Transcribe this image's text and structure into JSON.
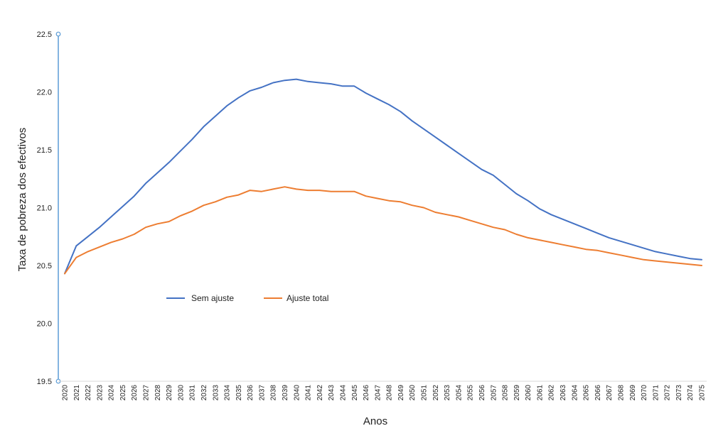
{
  "chart_data": {
    "type": "line",
    "title": "",
    "xlabel": "Anos",
    "ylabel": "Taxa de pobreza dos efectivos",
    "ylim": [
      19.5,
      22.5
    ],
    "yticks": [
      "19.5",
      "20.0",
      "20.5",
      "21.0",
      "21.5",
      "22.0",
      "22.5"
    ],
    "grid": false,
    "legend_position": "inside-left-lower",
    "x": [
      2020,
      2021,
      2022,
      2023,
      2024,
      2025,
      2026,
      2027,
      2028,
      2029,
      2030,
      2031,
      2032,
      2033,
      2034,
      2035,
      2036,
      2037,
      2038,
      2039,
      2040,
      2041,
      2042,
      2043,
      2044,
      2045,
      2046,
      2047,
      2048,
      2049,
      2050,
      2051,
      2052,
      2053,
      2054,
      2055,
      2056,
      2057,
      2058,
      2059,
      2060,
      2061,
      2062,
      2063,
      2064,
      2065,
      2066,
      2067,
      2068,
      2069,
      2070,
      2071,
      2072,
      2073,
      2074,
      2075
    ],
    "series": [
      {
        "name": "Sem ajuste",
        "color": "#4472C4",
        "values": [
          20.43,
          20.67,
          20.75,
          20.83,
          20.92,
          21.01,
          21.1,
          21.21,
          21.3,
          21.39,
          21.49,
          21.59,
          21.7,
          21.79,
          21.88,
          21.95,
          22.01,
          22.04,
          22.08,
          22.1,
          22.11,
          22.09,
          22.08,
          22.07,
          22.05,
          22.05,
          21.99,
          21.94,
          21.89,
          21.83,
          21.75,
          21.68,
          21.61,
          21.54,
          21.47,
          21.4,
          21.33,
          21.28,
          21.2,
          21.12,
          21.06,
          20.99,
          20.94,
          20.9,
          20.86,
          20.82,
          20.78,
          20.74,
          20.71,
          20.68,
          20.65,
          20.62,
          20.6,
          20.58,
          20.56,
          20.55
        ]
      },
      {
        "name": "Ajuste total",
        "color": "#ED7D31",
        "values": [
          20.43,
          20.57,
          20.62,
          20.66,
          20.7,
          20.73,
          20.77,
          20.83,
          20.86,
          20.88,
          20.93,
          20.97,
          21.02,
          21.05,
          21.09,
          21.11,
          21.15,
          21.14,
          21.16,
          21.18,
          21.16,
          21.15,
          21.15,
          21.14,
          21.14,
          21.14,
          21.1,
          21.08,
          21.06,
          21.05,
          21.02,
          21.0,
          20.96,
          20.94,
          20.92,
          20.89,
          20.86,
          20.83,
          20.81,
          20.77,
          20.74,
          20.72,
          20.7,
          20.68,
          20.66,
          20.64,
          20.63,
          20.61,
          20.59,
          20.57,
          20.55,
          20.54,
          20.53,
          20.52,
          20.51,
          20.5
        ]
      }
    ]
  }
}
